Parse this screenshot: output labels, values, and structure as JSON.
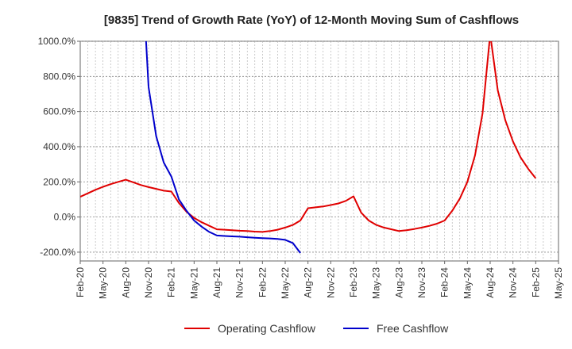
{
  "chart_data": {
    "type": "line",
    "title": "[9835]  Trend of Growth Rate (YoY) of 12-Month Moving Sum of Cashflows",
    "xlabel": "",
    "ylabel": "",
    "ylim": [
      -250,
      1000
    ],
    "yticks": [
      -200,
      0,
      200,
      400,
      600,
      800,
      1000
    ],
    "ytick_labels": [
      "-200.0%",
      "0.0%",
      "200.0%",
      "400.0%",
      "600.0%",
      "800.0%",
      "1000.0%"
    ],
    "xlim": [
      "2020-02",
      "2025-05"
    ],
    "xtick_labels": [
      "Feb-20",
      "May-20",
      "Aug-20",
      "Nov-20",
      "Feb-21",
      "May-21",
      "Aug-21",
      "Nov-21",
      "Feb-22",
      "May-22",
      "Aug-22",
      "Nov-22",
      "Feb-23",
      "May-23",
      "Aug-23",
      "Nov-23",
      "Feb-24",
      "May-24",
      "Aug-24",
      "Nov-24",
      "Feb-25",
      "May-25"
    ],
    "grid": true,
    "legend_position": "bottom",
    "series": [
      {
        "name": "Operating Cashflow",
        "color": "#e00000",
        "x": [
          "2020-02",
          "2020-03",
          "2020-04",
          "2020-05",
          "2020-06",
          "2020-07",
          "2020-08",
          "2020-09",
          "2020-10",
          "2020-11",
          "2020-12",
          "2021-01",
          "2021-02",
          "2021-03",
          "2021-04",
          "2021-05",
          "2021-06",
          "2021-07",
          "2021-08",
          "2021-09",
          "2021-10",
          "2021-11",
          "2021-12",
          "2022-01",
          "2022-02",
          "2022-03",
          "2022-04",
          "2022-05",
          "2022-06",
          "2022-07",
          "2022-08",
          "2022-09",
          "2022-10",
          "2022-11",
          "2022-12",
          "2023-01",
          "2023-02",
          "2023-03",
          "2023-04",
          "2023-05",
          "2023-06",
          "2023-07",
          "2023-08",
          "2023-09",
          "2023-10",
          "2023-11",
          "2023-12",
          "2024-01",
          "2024-02",
          "2024-03",
          "2024-04",
          "2024-05",
          "2024-06",
          "2024-07",
          "2024-08",
          "2024-09",
          "2024-10",
          "2024-11",
          "2024-12",
          "2025-01",
          "2025-02"
        ],
        "values": [
          115,
          135,
          155,
          172,
          187,
          200,
          212,
          197,
          182,
          170,
          160,
          150,
          145,
          80,
          30,
          -5,
          -30,
          -50,
          -70,
          -72,
          -75,
          -78,
          -80,
          -83,
          -85,
          -80,
          -72,
          -60,
          -45,
          -20,
          50,
          55,
          60,
          68,
          77,
          92,
          118,
          25,
          -20,
          -45,
          -60,
          -70,
          -80,
          -75,
          -68,
          -60,
          -50,
          -38,
          -20,
          35,
          105,
          200,
          350,
          590,
          1040,
          720,
          550,
          430,
          340,
          275,
          220
        ]
      },
      {
        "name": "Free Cashflow",
        "color": "#0000cc",
        "x": [
          "2020-11",
          "2020-12",
          "2021-01",
          "2021-02",
          "2021-03",
          "2021-04",
          "2021-05",
          "2021-06",
          "2021-07",
          "2021-08",
          "2021-09",
          "2021-10",
          "2021-11",
          "2021-12",
          "2022-01",
          "2022-02",
          "2022-03",
          "2022-04",
          "2022-05",
          "2022-06",
          "2022-07"
        ],
        "values": [
          740,
          460,
          310,
          230,
          100,
          35,
          -20,
          -55,
          -85,
          -105,
          -108,
          -110,
          -112,
          -115,
          -118,
          -120,
          -122,
          -125,
          -130,
          -148,
          -205
        ]
      }
    ]
  }
}
